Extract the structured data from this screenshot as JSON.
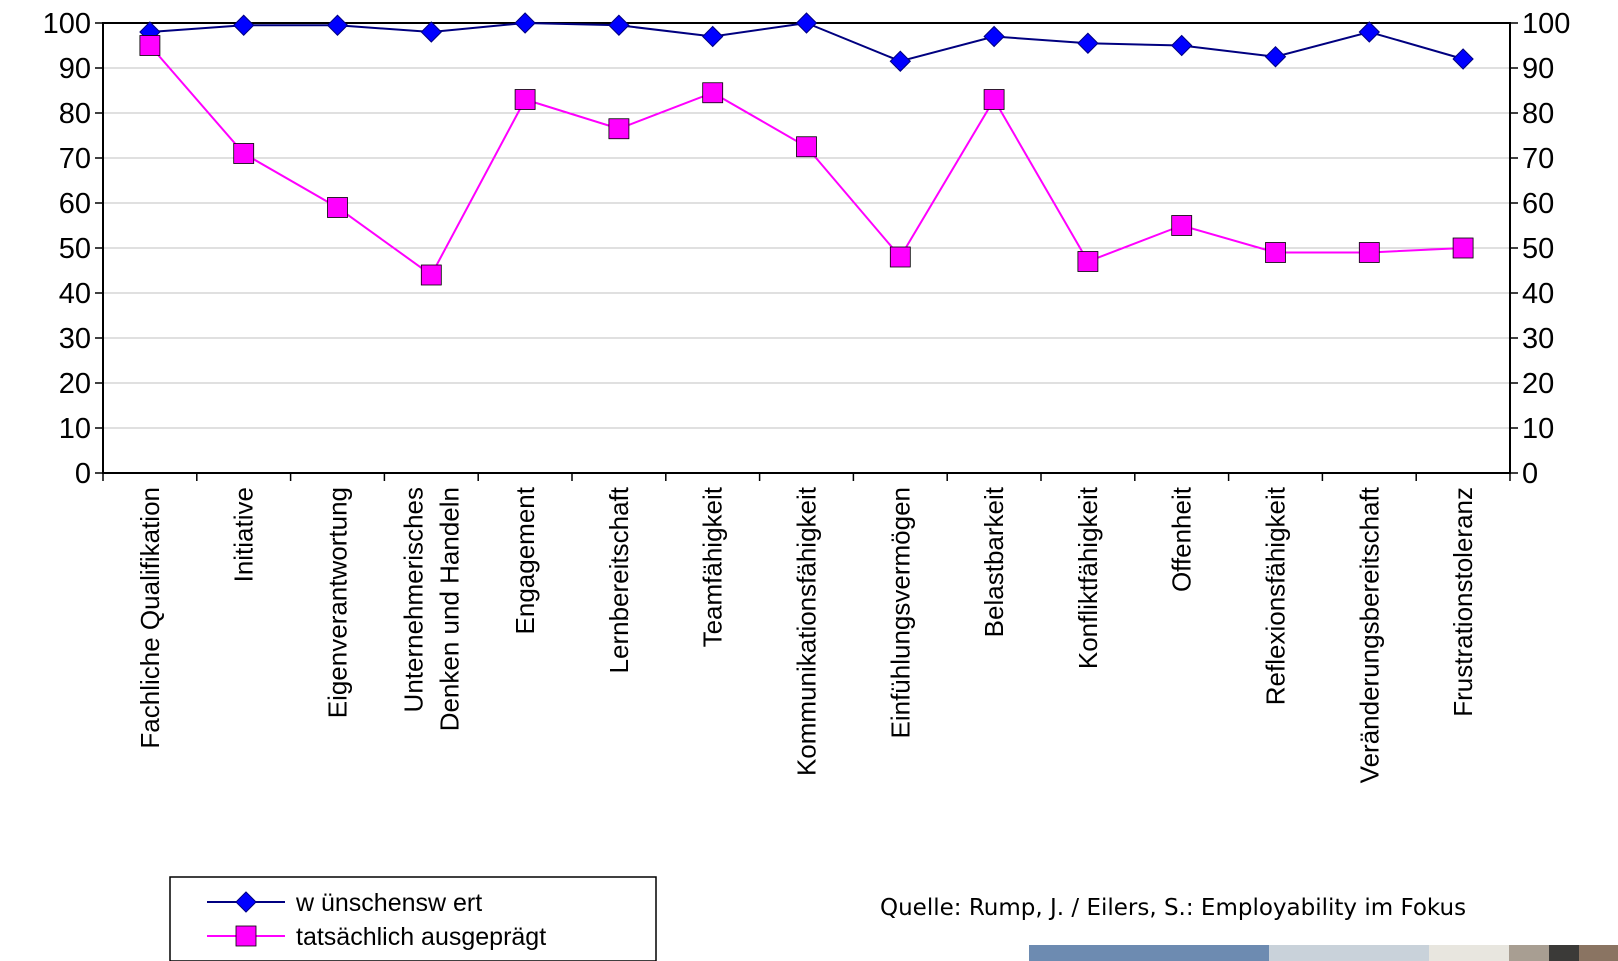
{
  "chart_data": {
    "type": "line",
    "categories": [
      [
        "Fachliche Qualifikation"
      ],
      [
        "Initiative"
      ],
      [
        "Eigenverantwortung"
      ],
      [
        "Unternehmerisches",
        "Denken und Handeln"
      ],
      [
        "Engagement"
      ],
      [
        "Lernbereitschaft"
      ],
      [
        "Teamfähigkeit"
      ],
      [
        "Kommunikationsfähigkeit"
      ],
      [
        "Einfühlungsvermögen"
      ],
      [
        "Belastbarkeit"
      ],
      [
        "Konfliktfähigkeit"
      ],
      [
        "Offenheit"
      ],
      [
        "Reflexionsfähigkeit"
      ],
      [
        "Veränderungsbereitschaft"
      ],
      [
        "Frustrationstoleranz"
      ]
    ],
    "series": [
      {
        "name": "w ünschensw ert",
        "color": "#0000ff",
        "line_color": "#000080",
        "marker": "diamond",
        "values": [
          98,
          99.5,
          99.5,
          98,
          100,
          99.5,
          97,
          100,
          91.5,
          97,
          95.5,
          95,
          92.5,
          98,
          92
        ]
      },
      {
        "name": "tatsächlich ausgeprägt",
        "color": "#ff00ff",
        "line_color": "#ff00ff",
        "marker": "square",
        "values": [
          95,
          71,
          59,
          44,
          83,
          76.5,
          84.5,
          72.5,
          48,
          83,
          47,
          55,
          49,
          49,
          50
        ]
      }
    ],
    "ylim": [
      0,
      100
    ],
    "yticks": [
      0,
      10,
      20,
      30,
      40,
      50,
      60,
      70,
      80,
      90,
      100
    ],
    "y_axis_right": true,
    "grid": true,
    "legend_placement": "bottom-left"
  },
  "source_text": "Quelle: Rump, J. / Eilers, S.: Employability im Fokus",
  "photo_colors": [
    "#6d8bb1",
    "#c9d2da",
    "#e8e6df",
    "#a89e92",
    "#3b3a38",
    "#8a7462"
  ]
}
